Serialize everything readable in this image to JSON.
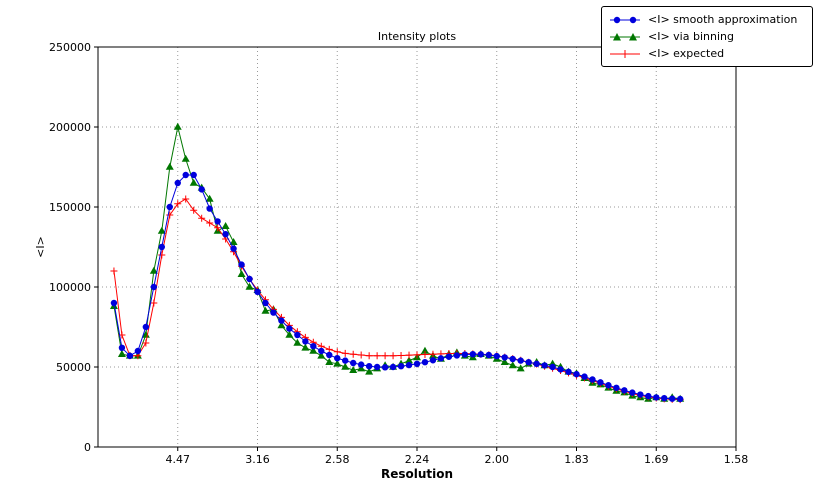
{
  "figure": {
    "title": "Intensity plots",
    "xlabel": "Resolution",
    "ylabel": "<I>"
  },
  "chart_data": {
    "type": "line",
    "title": "Intensity plots",
    "xlabel": "Resolution",
    "ylabel": "<I>",
    "grid": true,
    "legend_position": "upper right, outside axes",
    "xlim": [
      0,
      0.4
    ],
    "ylim": [
      0,
      250000
    ],
    "xticks": [
      {
        "pos": 0.05,
        "label": "4.47"
      },
      {
        "pos": 0.1,
        "label": "3.16"
      },
      {
        "pos": 0.15,
        "label": "2.58"
      },
      {
        "pos": 0.2,
        "label": "2.24"
      },
      {
        "pos": 0.25,
        "label": "2.00"
      },
      {
        "pos": 0.3,
        "label": "1.83"
      },
      {
        "pos": 0.35,
        "label": "1.69"
      },
      {
        "pos": 0.4,
        "label": "1.58"
      }
    ],
    "yticks": [
      0,
      50000,
      100000,
      150000,
      200000,
      250000
    ],
    "x": [
      0.01,
      0.015,
      0.02,
      0.025,
      0.03,
      0.035,
      0.04,
      0.045,
      0.05,
      0.055,
      0.06,
      0.065,
      0.07,
      0.075,
      0.08,
      0.085,
      0.09,
      0.095,
      0.1,
      0.105,
      0.11,
      0.115,
      0.12,
      0.125,
      0.13,
      0.135,
      0.14,
      0.145,
      0.15,
      0.155,
      0.16,
      0.165,
      0.17,
      0.175,
      0.18,
      0.185,
      0.19,
      0.195,
      0.2,
      0.205,
      0.21,
      0.215,
      0.22,
      0.225,
      0.23,
      0.235,
      0.24,
      0.245,
      0.25,
      0.255,
      0.26,
      0.265,
      0.27,
      0.275,
      0.28,
      0.285,
      0.29,
      0.295,
      0.3,
      0.305,
      0.31,
      0.315,
      0.32,
      0.325,
      0.33,
      0.335,
      0.34,
      0.345,
      0.35,
      0.355,
      0.36,
      0.365
    ],
    "series": [
      {
        "name": "<I> smooth approximation",
        "color": "#0000dd",
        "marker": "circle",
        "values": [
          90000,
          62000,
          57000,
          60000,
          75000,
          100000,
          125000,
          150000,
          165000,
          170000,
          170000,
          161000,
          149000,
          141000,
          133000,
          124000,
          114000,
          105000,
          97000,
          90000,
          84000,
          79000,
          74000,
          70000,
          66000,
          63000,
          60000,
          57500,
          55500,
          54000,
          52500,
          51500,
          50500,
          50000,
          49800,
          50000,
          50500,
          51200,
          52000,
          53000,
          54200,
          55400,
          56400,
          57200,
          57800,
          58000,
          57900,
          57500,
          56800,
          56000,
          55000,
          54000,
          53000,
          52000,
          51000,
          50000,
          48500,
          47000,
          45500,
          44000,
          42200,
          40400,
          38600,
          37000,
          35400,
          34000,
          32800,
          31800,
          31000,
          30500,
          30200,
          30000
        ]
      },
      {
        "name": "<I> via binning",
        "color": "#007700",
        "marker": "triangle",
        "values": [
          88000,
          58000,
          57000,
          57000,
          70000,
          110000,
          135000,
          175000,
          200000,
          180000,
          165000,
          162000,
          155000,
          135000,
          138000,
          128000,
          108000,
          100000,
          98000,
          85000,
          86000,
          76000,
          70000,
          65000,
          62000,
          60000,
          57000,
          53000,
          52000,
          50000,
          48000,
          49000,
          47000,
          49000,
          51000,
          50000,
          52000,
          54000,
          56000,
          60000,
          57000,
          55000,
          58000,
          59000,
          57000,
          56000,
          58000,
          57000,
          55000,
          53000,
          51000,
          49000,
          52000,
          53000,
          51000,
          52000,
          50000,
          47000,
          46000,
          43000,
          40000,
          39000,
          37000,
          35000,
          34000,
          32000,
          31000,
          30000,
          31000,
          30000,
          31000,
          30000
        ]
      },
      {
        "name": "<I> expected",
        "color": "#ff0000",
        "marker": "plus",
        "values": [
          110000,
          70000,
          57000,
          57000,
          65000,
          90000,
          120000,
          145000,
          152000,
          155000,
          148000,
          143000,
          140000,
          137000,
          130000,
          122000,
          113000,
          105000,
          98000,
          92000,
          86000,
          81000,
          76000,
          72000,
          68500,
          65500,
          63000,
          61000,
          59500,
          58500,
          58000,
          57500,
          57000,
          57000,
          57000,
          57000,
          57200,
          57400,
          57600,
          57800,
          58000,
          58200,
          58400,
          58500,
          58400,
          58200,
          58000,
          57600,
          57000,
          56200,
          55200,
          54200,
          53000,
          51800,
          50500,
          49200,
          47800,
          46300,
          44800,
          43200,
          41500,
          39800,
          38000,
          36300,
          34800,
          33400,
          32200,
          31300,
          30600,
          30100,
          29800,
          29600
        ]
      }
    ]
  }
}
